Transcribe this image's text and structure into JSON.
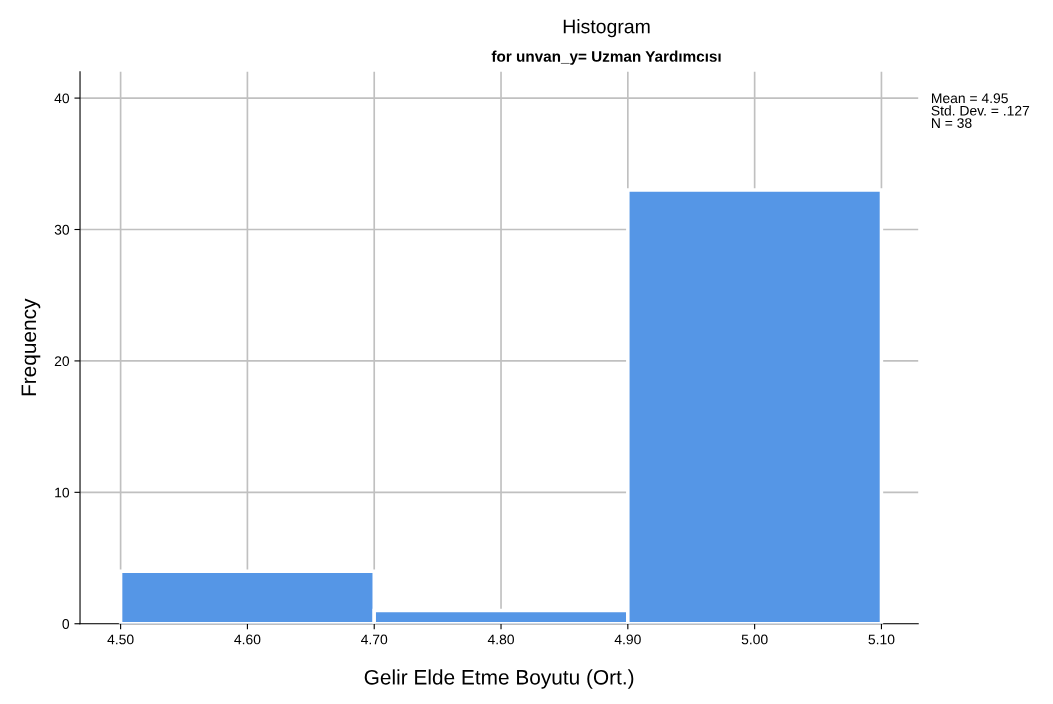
{
  "chart_data": {
    "type": "histogram",
    "title": "Histogram",
    "subtitle": "for unvan_y= Uzman Yardımcısı",
    "xlabel": "Gelir Elde Etme Boyutu (Ort.)",
    "ylabel": "Frequency",
    "bins": [
      4.5,
      4.7,
      4.9,
      5.1
    ],
    "values": [
      4,
      1,
      33
    ],
    "color": "#5596e6",
    "xlim": [
      4.468,
      5.129
    ],
    "ylim": [
      0,
      42
    ],
    "xticks": [
      {
        "value": 4.5,
        "label": "4.50"
      },
      {
        "value": 4.6,
        "label": "4.60"
      },
      {
        "value": 4.7,
        "label": "4.70"
      },
      {
        "value": 4.8,
        "label": "4.80"
      },
      {
        "value": 4.9,
        "label": "4.90"
      },
      {
        "value": 5.0,
        "label": "5.00"
      },
      {
        "value": 5.1,
        "label": "5.10"
      }
    ],
    "yticks": [
      0,
      10,
      20,
      30,
      40
    ],
    "grid": true,
    "annotations": [
      "Mean = 4.95",
      "Std. Dev. = .127",
      "N = 38"
    ]
  }
}
